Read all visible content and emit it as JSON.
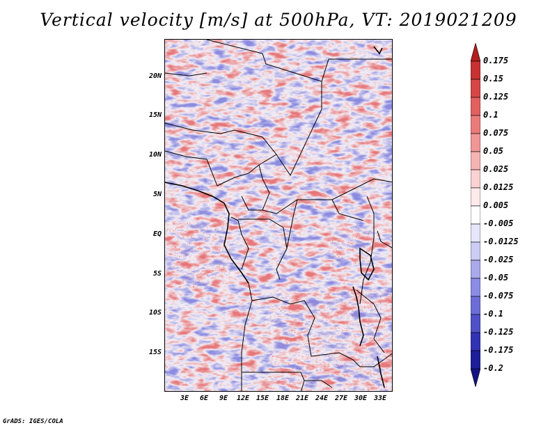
{
  "title": "Vertical velocity [m/s] at 500hPa, VT: 2019021209",
  "footer": "GrADS: IGES/COLA",
  "latitude_ticks": [
    "20N",
    "15N",
    "10N",
    "5N",
    "EQ",
    "5S",
    "10S",
    "15S"
  ],
  "longitude_ticks": [
    "3E",
    "6E",
    "9E",
    "12E",
    "15E",
    "18E",
    "21E",
    "24E",
    "27E",
    "30E",
    "33E"
  ],
  "colorbar": {
    "levels": [
      "0.175",
      "0.15",
      "0.125",
      "0.1",
      "0.075",
      "0.05",
      "0.025",
      "0.0125",
      "0.005",
      "-0.005",
      "-0.0125",
      "-0.025",
      "-0.05",
      "-0.075",
      "-0.1",
      "-0.125",
      "-0.175",
      "-0.2"
    ],
    "colors": [
      "#b41f1f",
      "#c83232",
      "#d74646",
      "#e36060",
      "#eb7b7b",
      "#f09696",
      "#f5b4b4",
      "#fad2d2",
      "#fdeaea",
      "#ffffff",
      "#e6e6fa",
      "#cccdf5",
      "#a9a9eb",
      "#8c8ce6",
      "#6d6dd7",
      "#5050c8",
      "#3232b4",
      "#1e1e9b",
      "#141482"
    ]
  },
  "map": {
    "background_color": "#f4eef6",
    "positive_color": "#e8787a",
    "negative_color": "#8080e0",
    "border_color": "#000000"
  }
}
